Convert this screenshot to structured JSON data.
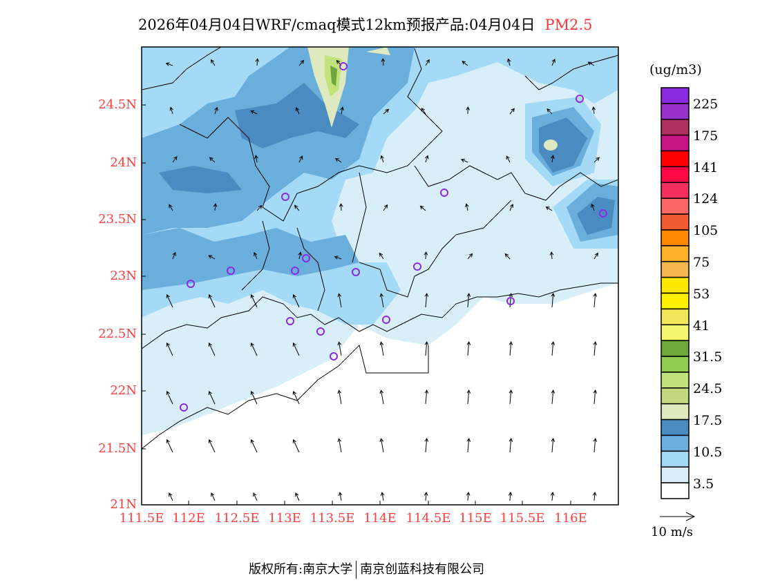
{
  "title": {
    "main": "2026年04月04日WRF/cmaq模式12km预报产品:04月04日",
    "pollutant": "PM2.5"
  },
  "axes": {
    "lat_labels": [
      "24.5N",
      "24N",
      "23.5N",
      "23N",
      "22.5N",
      "22N",
      "21.5N",
      "21N"
    ],
    "lon_labels": [
      "111.5E",
      "112E",
      "112.5E",
      "113E",
      "113.5E",
      "114E",
      "114.5E",
      "115E",
      "115.5E",
      "116E"
    ]
  },
  "colorbar": {
    "unit": "(ug/m3)",
    "labels": [
      "225",
      "175",
      "141",
      "124",
      "105",
      "75",
      "53",
      "41",
      "31.5",
      "24.5",
      "17.5",
      "10.5",
      "3.5"
    ],
    "colors": [
      "#8a2be2",
      "#9932cc",
      "#b03060",
      "#c71585",
      "#ff0000",
      "#ff0844",
      "#f53060",
      "#ff6666",
      "#f05a30",
      "#ff8800",
      "#ffb02a",
      "#f5b84c",
      "#ffe800",
      "#fff000",
      "#f3e55a",
      "#f3f56b",
      "#6da83a",
      "#92cc50",
      "#c2e27c",
      "#c4d880",
      "#dfe9c0",
      "#4a8cc2",
      "#6aaedc",
      "#a4daf6",
      "#d8eff9",
      "#ffffff"
    ]
  },
  "wind_scale": {
    "label": "10 m/s"
  },
  "footer": {
    "left": "版权所有:南京大学",
    "right": "南京创蓝科技有限公司"
  }
}
